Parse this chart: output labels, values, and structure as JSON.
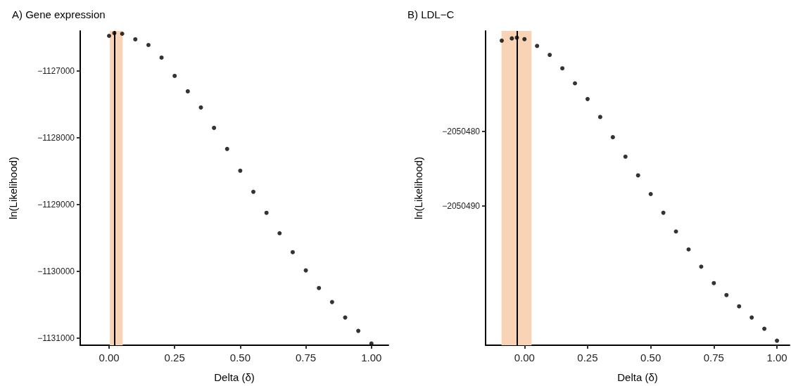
{
  "chart_data": [
    {
      "type": "scatter",
      "title": "A) Gene expression",
      "xlabel": "Delta (δ)",
      "ylabel": "ln(Likelihood)",
      "marker": "circle",
      "grid": false,
      "x": [
        0,
        0.02,
        0.05,
        0.1,
        0.15,
        0.2,
        0.25,
        0.3,
        0.35,
        0.4,
        0.45,
        0.5,
        0.55,
        0.6,
        0.65,
        0.7,
        0.75,
        0.8,
        0.85,
        0.9,
        0.95,
        1.0
      ],
      "series": [
        {
          "color": "#000000",
          "values": [
            -1126474,
            -1126432,
            -1126442,
            -1126526,
            -1126611,
            -1126800,
            -1127074,
            -1127305,
            -1127547,
            -1127853,
            -1128168,
            -1128495,
            -1128811,
            -1129126,
            -1129432,
            -1129716,
            -1129989,
            -1130253,
            -1130463,
            -1130695,
            -1130895,
            -1131084
          ]
        }
      ],
      "xlim": [
        -0.11,
        1.065
      ],
      "xticks": [
        {
          "value": 0,
          "label": "0.00"
        },
        {
          "value": 0.25,
          "label": "0.25"
        },
        {
          "value": 0.5,
          "label": "0.50"
        },
        {
          "value": 0.75,
          "label": "0.75"
        },
        {
          "value": 1,
          "label": "1.00"
        }
      ],
      "ylim": [
        -1131110,
        -1126400
      ],
      "yticks": [
        {
          "value": -1131000,
          "label": "−1131000"
        },
        {
          "value": -1130000,
          "label": "−1130000"
        },
        {
          "value": -1129000,
          "label": "−1129000"
        },
        {
          "value": -1128000,
          "label": "−1128000"
        },
        {
          "value": -1127000,
          "label": "−1127000"
        }
      ],
      "ref_lines": [
        {
          "axis": "x",
          "value": 0.02,
          "color": "#000000"
        }
      ],
      "bands": [
        {
          "axis": "x",
          "from": 0.003,
          "to": 0.052,
          "color": "#f8d3b6"
        }
      ]
    },
    {
      "type": "scatter",
      "title": "B) LDL−C",
      "xlabel": "Delta (δ)",
      "ylabel": "ln(Likelihood)",
      "marker": "circle",
      "grid": false,
      "x": [
        -0.09,
        -0.05,
        -0.03,
        0,
        0.05,
        0.1,
        0.15,
        0.2,
        0.25,
        0.3,
        0.35,
        0.4,
        0.45,
        0.5,
        0.55,
        0.6,
        0.65,
        0.7,
        0.75,
        0.8,
        0.85,
        0.9,
        0.95,
        1.0
      ],
      "series": [
        {
          "color": "#000000",
          "values": [
            -2050467.9,
            -2050467.6,
            -2050467.5,
            -2050467.7,
            -2050468.6,
            -2050469.8,
            -2050471.6,
            -2050473.6,
            -2050475.7,
            -2050478.1,
            -2050480.8,
            -2050483.4,
            -2050485.9,
            -2050488.4,
            -2050490.9,
            -2050493.4,
            -2050495.8,
            -2050498.1,
            -2050500.3,
            -2050501.9,
            -2050503.4,
            -2050504.9,
            -2050506.4,
            -2050508.0
          ]
        }
      ],
      "xlim": [
        -0.154,
        1.05
      ],
      "xticks": [
        {
          "value": 0,
          "label": "0.00"
        },
        {
          "value": 0.25,
          "label": "0.25"
        },
        {
          "value": 0.5,
          "label": "0.50"
        },
        {
          "value": 0.75,
          "label": "0.75"
        },
        {
          "value": 1,
          "label": "1.00"
        }
      ],
      "ylim": [
        -2050508.6,
        -2050466.6
      ],
      "yticks": [
        {
          "value": -2050490,
          "label": "−2050490"
        },
        {
          "value": -2050480,
          "label": "−2050480"
        }
      ],
      "ref_lines": [
        {
          "axis": "x",
          "value": -0.03,
          "color": "#000000"
        }
      ],
      "bands": [
        {
          "axis": "x",
          "from": -0.091,
          "to": 0.028,
          "color": "#f8d3b6"
        }
      ]
    }
  ]
}
